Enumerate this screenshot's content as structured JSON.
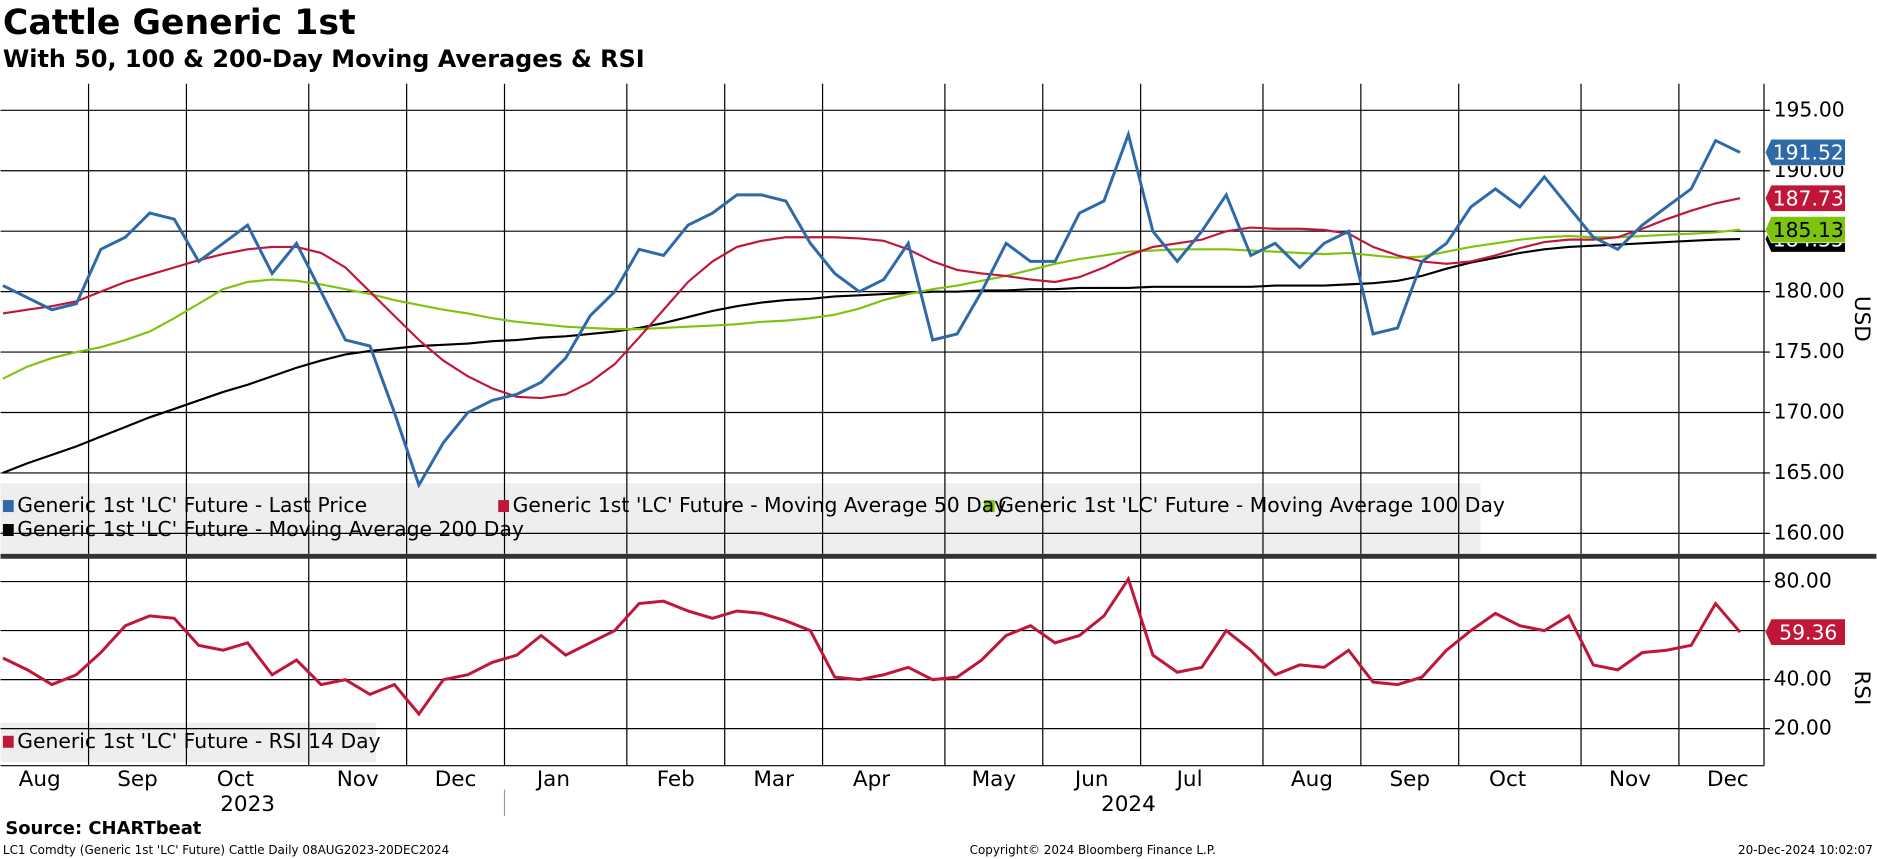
{
  "title": "Cattle Generic 1st",
  "subtitle": "With 50, 100 & 200-Day Moving Averages & RSI",
  "source": "Source: CHARTbeat",
  "footer": {
    "left": "LC1 Comdty (Generic 1st 'LC' Future) Cattle  Daily 08AUG2023-20DEC2024",
    "center": "Copyright© 2024 Bloomberg Finance L.P.",
    "right": "20-Dec-2024 10:02:07"
  },
  "x_axis": {
    "categories": [
      "Aug",
      null,
      null,
      null,
      "Sep",
      null,
      null,
      null,
      "Oct",
      null,
      null,
      null,
      null,
      "Nov",
      null,
      null,
      null,
      "Dec",
      null,
      null,
      null,
      "Jan",
      null,
      null,
      null,
      null,
      "Feb",
      null,
      null,
      null,
      "Mar",
      null,
      null,
      null,
      "Apr",
      null,
      null,
      null,
      null,
      "May",
      null,
      null,
      null,
      "Jun",
      null,
      null,
      null,
      "Jul",
      null,
      null,
      null,
      null,
      "Aug",
      null,
      null,
      null,
      "Sep",
      null,
      null,
      null,
      "Oct",
      null,
      null,
      null,
      null,
      "Nov",
      null,
      null,
      null,
      "Dec",
      null,
      null
    ],
    "years": [
      "2023",
      "2024"
    ]
  },
  "chart_data": [
    {
      "type": "line",
      "y_label": "USD",
      "ylim": [
        158.3,
        197.2
      ],
      "grid": true,
      "yticks": [
        {
          "value": 160,
          "label": "160.00"
        },
        {
          "value": 165,
          "label": "165.00"
        },
        {
          "value": 170,
          "label": "170.00"
        },
        {
          "value": 175,
          "label": "175.00"
        },
        {
          "value": 180,
          "label": "180.00"
        },
        {
          "value": 185,
          "label": "185.00"
        },
        {
          "value": 190,
          "label": "190.00"
        },
        {
          "value": 195,
          "label": "195.00"
        }
      ],
      "series": [
        {
          "name": "Generic 1st 'LC' Future - Last Price",
          "color": "#2f6aa8",
          "values": [
            180.5,
            179.5,
            178.5,
            179,
            183.5,
            184.5,
            186.5,
            186,
            182.5,
            184,
            185.5,
            181.5,
            184,
            180,
            176,
            175.5,
            170,
            164,
            167.5,
            170,
            171,
            171.5,
            172.5,
            174.5,
            178,
            180,
            183.5,
            183,
            185.5,
            186.5,
            188,
            188,
            187.5,
            184,
            181.5,
            180,
            181,
            184,
            176,
            176.5,
            180,
            184,
            182.5,
            182.5,
            186.5,
            187.5,
            193,
            185,
            182.5,
            185,
            188,
            183,
            184,
            182,
            184,
            185,
            176.5,
            177,
            182.5,
            184,
            187,
            188.5,
            187,
            189.5,
            187,
            184.5,
            183.5,
            185.5,
            187,
            188.5,
            192.5,
            191.52
          ]
        },
        {
          "name": "Generic 1st 'LC' Future - Moving Average 50 Day",
          "color": "#c0163a",
          "values": [
            178.2,
            178.5,
            178.8,
            179.2,
            180,
            180.8,
            181.4,
            182,
            182.6,
            183.1,
            183.5,
            183.7,
            183.7,
            183.2,
            182,
            180,
            178,
            176,
            174.3,
            173,
            172,
            171.3,
            171.2,
            171.5,
            172.5,
            174,
            176.2,
            178.5,
            180.8,
            182.5,
            183.7,
            184.2,
            184.5,
            184.5,
            184.5,
            184.4,
            184.2,
            183.5,
            182.5,
            181.8,
            181.5,
            181.3,
            181,
            180.8,
            181.2,
            182,
            183,
            183.7,
            184,
            184.3,
            185,
            185.3,
            185.2,
            185.2,
            185.1,
            184.8,
            183.7,
            183,
            182.5,
            182.3,
            182.5,
            183,
            183.6,
            184.1,
            184.3,
            184.3,
            184.5,
            185.2,
            186,
            186.7,
            187.3,
            187.73
          ]
        },
        {
          "name": "Generic 1st 'LC' Future - Moving Average 100 Day",
          "color": "#7ec40e",
          "values": [
            172.8,
            173.8,
            174.5,
            175,
            175.4,
            176,
            176.7,
            177.8,
            179,
            180.2,
            180.8,
            181,
            180.9,
            180.6,
            180.2,
            179.8,
            179.3,
            178.9,
            178.5,
            178.2,
            177.8,
            177.5,
            177.3,
            177.1,
            177,
            176.9,
            176.9,
            177,
            177.1,
            177.2,
            177.3,
            177.5,
            177.6,
            177.8,
            178.1,
            178.6,
            179.3,
            179.8,
            180.2,
            180.5,
            180.9,
            181.3,
            181.8,
            182.3,
            182.7,
            183,
            183.3,
            183.4,
            183.5,
            183.5,
            183.5,
            183.4,
            183.3,
            183.2,
            183.1,
            183.2,
            183,
            182.8,
            182.9,
            183.3,
            183.7,
            184,
            184.3,
            184.5,
            184.6,
            184.5,
            184.5,
            184.6,
            184.7,
            184.8,
            184.9,
            185.13
          ]
        },
        {
          "name": "Generic 1st 'LC' Future - Moving Average 200 Day",
          "color": "#000000",
          "values": [
            165,
            165.8,
            166.5,
            167.2,
            168,
            168.8,
            169.6,
            170.3,
            171,
            171.7,
            172.3,
            173,
            173.7,
            174.3,
            174.8,
            175.1,
            175.3,
            175.5,
            175.6,
            175.7,
            175.9,
            176,
            176.2,
            176.3,
            176.5,
            176.7,
            177,
            177.4,
            177.9,
            178.4,
            178.8,
            179.1,
            179.3,
            179.4,
            179.6,
            179.7,
            179.8,
            179.9,
            180,
            180,
            180.1,
            180.1,
            180.2,
            180.2,
            180.3,
            180.3,
            180.3,
            180.4,
            180.4,
            180.4,
            180.4,
            180.4,
            180.5,
            180.5,
            180.5,
            180.6,
            180.7,
            180.9,
            181.3,
            181.9,
            182.4,
            182.8,
            183.2,
            183.5,
            183.7,
            183.8,
            183.9,
            184,
            184.1,
            184.2,
            184.3,
            184.35
          ]
        }
      ]
    },
    {
      "type": "line",
      "y_label": "RSI",
      "ylim": [
        4.9,
        89.8
      ],
      "grid": true,
      "yticks": [
        {
          "value": 20,
          "label": "20.00"
        },
        {
          "value": 40,
          "label": "40.00"
        },
        {
          "value": 60,
          "label": "60.00"
        },
        {
          "value": 80,
          "label": "80.00"
        }
      ],
      "series": [
        {
          "name": "Generic 1st 'LC' Future - RSI 14 Day",
          "color": "#c0163a",
          "values": [
            48.8,
            44,
            38,
            42,
            51,
            62,
            66,
            65,
            54,
            52,
            55,
            42,
            48,
            38,
            40,
            34,
            38,
            26,
            40,
            42,
            47,
            50,
            58,
            50,
            55,
            60,
            71,
            72,
            68,
            65,
            68,
            67,
            64,
            60,
            41,
            40,
            42,
            45,
            40,
            41,
            48,
            58,
            62,
            55,
            58,
            66,
            81,
            50,
            43,
            45,
            60,
            52,
            42,
            46,
            45,
            52,
            39,
            38,
            41,
            52,
            60,
            67,
            62,
            60,
            66,
            46,
            44,
            51,
            52,
            54,
            71,
            59.36
          ]
        }
      ]
    }
  ]
}
